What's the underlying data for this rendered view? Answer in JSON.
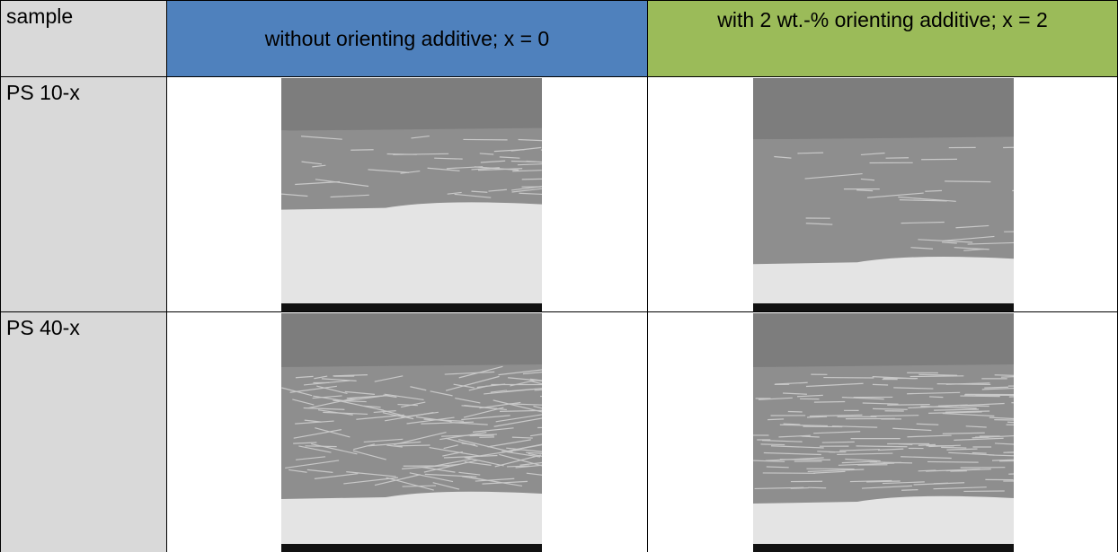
{
  "table": {
    "header": [
      "sample",
      "without orienting additive; x = 0",
      "with 2 wt.-% orienting additive; x = 2"
    ],
    "rows": [
      [
        "PS 10-x"
      ],
      [
        "PS 40-x"
      ]
    ]
  }
}
